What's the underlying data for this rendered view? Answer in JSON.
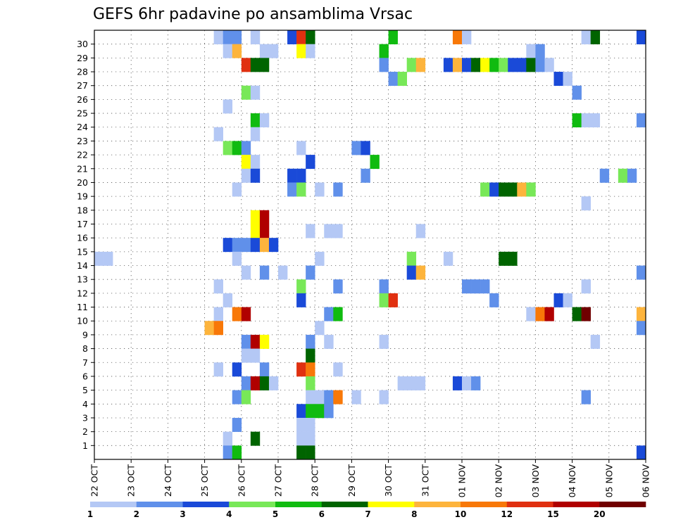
{
  "chart_data": {
    "type": "heatmap",
    "title": "GEFS 6hr padavine po ansamblima Vrsac",
    "xlabel": "",
    "ylabel": "",
    "x_tick_labels": [
      "22 OCT",
      "23 OCT",
      "24 OCT",
      "25 OCT",
      "26 OCT",
      "27 OCT",
      "28 OCT",
      "29 OCT",
      "30 OCT",
      "31 OCT",
      "01 NOV",
      "02 NOV",
      "03 NOV",
      "04 NOV",
      "05 NOV",
      "06 NOV"
    ],
    "y_tick_labels": [
      "1",
      "2",
      "3",
      "4",
      "5",
      "6",
      "7",
      "8",
      "9",
      "10",
      "11",
      "12",
      "13",
      "14",
      "15",
      "16",
      "17",
      "18",
      "19",
      "20",
      "21",
      "22",
      "23",
      "24",
      "25",
      "26",
      "27",
      "28",
      "29",
      "30"
    ],
    "steps_per_day": 4,
    "n_steps": 60,
    "n_members": 31,
    "colorbar_levels": [
      1,
      2,
      3,
      4,
      5,
      6,
      7,
      8,
      10,
      12,
      15,
      20
    ],
    "colorbar_tick_labels": [
      "1",
      "2",
      "3",
      "4",
      "5",
      "6",
      "7",
      "8",
      "10",
      "12",
      "15",
      "20"
    ],
    "colors": [
      "#b4c8f5",
      "#6090ea",
      "#1a4ad8",
      "#78e858",
      "#10bb10",
      "#006400",
      "#ffff00",
      "#fdb43c",
      "#f87808",
      "#e03010",
      "#b00000",
      "#700000"
    ],
    "cells": [
      [
        30,
        13,
        0
      ],
      [
        30,
        14,
        1
      ],
      [
        30,
        15,
        1
      ],
      [
        30,
        17,
        0
      ],
      [
        30,
        21,
        2
      ],
      [
        30,
        22,
        9
      ],
      [
        30,
        23,
        5
      ],
      [
        30,
        32,
        4
      ],
      [
        30,
        39,
        8
      ],
      [
        30,
        40,
        0
      ],
      [
        30,
        53,
        0
      ],
      [
        30,
        54,
        5
      ],
      [
        30,
        59,
        2
      ],
      [
        29,
        14,
        0
      ],
      [
        29,
        15,
        7
      ],
      [
        29,
        18,
        0
      ],
      [
        29,
        19,
        0
      ],
      [
        29,
        22,
        6
      ],
      [
        29,
        23,
        0
      ],
      [
        29,
        31,
        4
      ],
      [
        29,
        47,
        0
      ],
      [
        29,
        48,
        1
      ],
      [
        28,
        16,
        9
      ],
      [
        28,
        17,
        5
      ],
      [
        28,
        18,
        5
      ],
      [
        28,
        31,
        1
      ],
      [
        28,
        34,
        3
      ],
      [
        28,
        35,
        7
      ],
      [
        28,
        38,
        2
      ],
      [
        28,
        39,
        7
      ],
      [
        28,
        40,
        2
      ],
      [
        28,
        41,
        5
      ],
      [
        28,
        42,
        6
      ],
      [
        28,
        43,
        4
      ],
      [
        28,
        44,
        3
      ],
      [
        28,
        45,
        2
      ],
      [
        28,
        46,
        2
      ],
      [
        28,
        47,
        5
      ],
      [
        28,
        48,
        1
      ],
      [
        28,
        49,
        0
      ],
      [
        27,
        32,
        1
      ],
      [
        27,
        33,
        3
      ],
      [
        27,
        50,
        2
      ],
      [
        27,
        51,
        0
      ],
      [
        26,
        16,
        3
      ],
      [
        26,
        17,
        0
      ],
      [
        26,
        52,
        1
      ],
      [
        25,
        14,
        0
      ],
      [
        24,
        17,
        4
      ],
      [
        24,
        18,
        0
      ],
      [
        24,
        52,
        4
      ],
      [
        24,
        53,
        0
      ],
      [
        24,
        54,
        0
      ],
      [
        24,
        59,
        1
      ],
      [
        23,
        13,
        0
      ],
      [
        23,
        17,
        0
      ],
      [
        22,
        14,
        3
      ],
      [
        22,
        15,
        4
      ],
      [
        22,
        16,
        1
      ],
      [
        22,
        22,
        0
      ],
      [
        22,
        28,
        1
      ],
      [
        22,
        29,
        2
      ],
      [
        21,
        16,
        6
      ],
      [
        21,
        17,
        0
      ],
      [
        21,
        23,
        2
      ],
      [
        21,
        30,
        4
      ],
      [
        20,
        16,
        0
      ],
      [
        20,
        17,
        2
      ],
      [
        20,
        21,
        2
      ],
      [
        20,
        22,
        2
      ],
      [
        20,
        29,
        1
      ],
      [
        20,
        55,
        1
      ],
      [
        20,
        57,
        3
      ],
      [
        20,
        58,
        1
      ],
      [
        19,
        15,
        0
      ],
      [
        19,
        21,
        1
      ],
      [
        19,
        22,
        3
      ],
      [
        19,
        24,
        0
      ],
      [
        19,
        26,
        1
      ],
      [
        19,
        42,
        3
      ],
      [
        19,
        43,
        2
      ],
      [
        19,
        44,
        5
      ],
      [
        19,
        45,
        5
      ],
      [
        19,
        46,
        7
      ],
      [
        19,
        47,
        3
      ],
      [
        18,
        53,
        0
      ],
      [
        17,
        17,
        6
      ],
      [
        17,
        18,
        10
      ],
      [
        16,
        17,
        6
      ],
      [
        16,
        18,
        10
      ],
      [
        16,
        23,
        0
      ],
      [
        16,
        25,
        0
      ],
      [
        16,
        26,
        0
      ],
      [
        16,
        35,
        0
      ],
      [
        15,
        14,
        2
      ],
      [
        15,
        15,
        1
      ],
      [
        15,
        16,
        1
      ],
      [
        15,
        17,
        2
      ],
      [
        15,
        18,
        7
      ],
      [
        15,
        19,
        2
      ],
      [
        14,
        0,
        0
      ],
      [
        14,
        15,
        0
      ],
      [
        14,
        24,
        0
      ],
      [
        14,
        34,
        3
      ],
      [
        14,
        38,
        0
      ],
      [
        14,
        44,
        5
      ],
      [
        14,
        45,
        5
      ],
      [
        13,
        16,
        0
      ],
      [
        14,
        1,
        0
      ],
      [
        13,
        18,
        1
      ],
      [
        13,
        20,
        0
      ],
      [
        13,
        23,
        1
      ],
      [
        13,
        34,
        2
      ],
      [
        13,
        35,
        7
      ],
      [
        13,
        59,
        1
      ],
      [
        12,
        13,
        0
      ],
      [
        12,
        22,
        3
      ],
      [
        12,
        26,
        1
      ],
      [
        12,
        31,
        1
      ],
      [
        12,
        40,
        1
      ],
      [
        12,
        41,
        1
      ],
      [
        12,
        42,
        1
      ],
      [
        12,
        53,
        0
      ],
      [
        11,
        14,
        0
      ],
      [
        11,
        22,
        2
      ],
      [
        11,
        31,
        3
      ],
      [
        11,
        32,
        9
      ],
      [
        11,
        43,
        1
      ],
      [
        11,
        50,
        2
      ],
      [
        11,
        51,
        0
      ],
      [
        10,
        13,
        0
      ],
      [
        10,
        15,
        8
      ],
      [
        10,
        16,
        10
      ],
      [
        10,
        25,
        1
      ],
      [
        10,
        26,
        4
      ],
      [
        10,
        47,
        0
      ],
      [
        10,
        48,
        8
      ],
      [
        10,
        49,
        10
      ],
      [
        10,
        52,
        5
      ],
      [
        10,
        53,
        11
      ],
      [
        10,
        59,
        7
      ],
      [
        9,
        12,
        7
      ],
      [
        9,
        13,
        8
      ],
      [
        9,
        24,
        0
      ],
      [
        9,
        59,
        1
      ],
      [
        8,
        16,
        1
      ],
      [
        8,
        17,
        10
      ],
      [
        8,
        18,
        6
      ],
      [
        8,
        23,
        1
      ],
      [
        8,
        25,
        0
      ],
      [
        8,
        31,
        0
      ],
      [
        8,
        54,
        0
      ],
      [
        7,
        16,
        0
      ],
      [
        7,
        17,
        0
      ],
      [
        7,
        23,
        5
      ],
      [
        6,
        13,
        0
      ],
      [
        6,
        15,
        2
      ],
      [
        6,
        18,
        1
      ],
      [
        6,
        22,
        9
      ],
      [
        6,
        23,
        8
      ],
      [
        6,
        26,
        0
      ],
      [
        5,
        16,
        1
      ],
      [
        5,
        17,
        10
      ],
      [
        5,
        18,
        5
      ],
      [
        5,
        19,
        0
      ],
      [
        5,
        23,
        3
      ],
      [
        5,
        33,
        0
      ],
      [
        5,
        34,
        0
      ],
      [
        5,
        35,
        0
      ],
      [
        5,
        39,
        2
      ],
      [
        5,
        40,
        0
      ],
      [
        5,
        41,
        1
      ],
      [
        4,
        15,
        1
      ],
      [
        4,
        16,
        3
      ],
      [
        4,
        23,
        0
      ],
      [
        4,
        24,
        0
      ],
      [
        4,
        25,
        1
      ],
      [
        4,
        26,
        8
      ],
      [
        4,
        28,
        0
      ],
      [
        4,
        31,
        0
      ],
      [
        4,
        53,
        1
      ],
      [
        3,
        22,
        2
      ],
      [
        3,
        23,
        4
      ],
      [
        3,
        24,
        4
      ],
      [
        3,
        25,
        1
      ],
      [
        2,
        15,
        1
      ],
      [
        2,
        22,
        0
      ],
      [
        2,
        23,
        0
      ],
      [
        1,
        14,
        0
      ],
      [
        1,
        17,
        5
      ],
      [
        1,
        22,
        0
      ],
      [
        1,
        23,
        0
      ],
      [
        0,
        14,
        1
      ],
      [
        0,
        15,
        4
      ],
      [
        0,
        22,
        5
      ],
      [
        0,
        23,
        5
      ],
      [
        0,
        59,
        2
      ]
    ]
  }
}
